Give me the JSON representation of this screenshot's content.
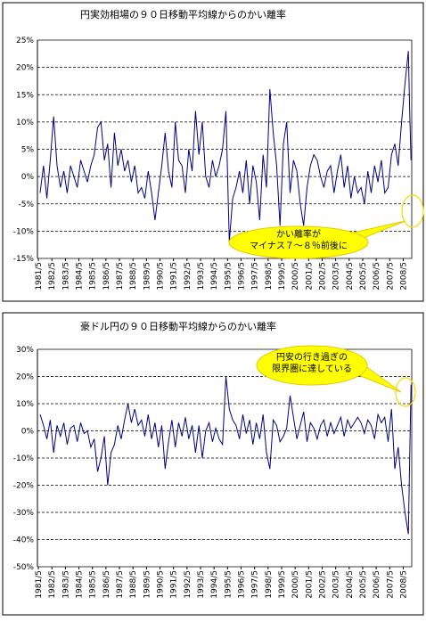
{
  "chart_data": [
    {
      "type": "line",
      "title": "円実効相場の９０日移動平均線からのかい離率",
      "color": "#000080",
      "grid": true,
      "annotation": [
        "かい離率が",
        "マイナス７～８％前後に"
      ],
      "ylim": [
        -15,
        25
      ],
      "yticks": [
        {
          "value": 25,
          "label": "25%"
        },
        {
          "value": 20,
          "label": "20%"
        },
        {
          "value": 15,
          "label": "15%"
        },
        {
          "value": 10,
          "label": "10%"
        },
        {
          "value": 5,
          "label": "5%"
        },
        {
          "value": 0,
          "label": "0%"
        },
        {
          "value": -5,
          "label": "-5%"
        },
        {
          "value": -10,
          "label": "-10%"
        },
        {
          "value": -15,
          "label": "-15%"
        }
      ],
      "xlim": [
        1981.3,
        2009.0
      ],
      "xticks": [
        {
          "value": 1981.37,
          "label": "1981/5"
        },
        {
          "value": 1982.37,
          "label": "1982/5"
        },
        {
          "value": 1983.37,
          "label": "1983/5"
        },
        {
          "value": 1984.37,
          "label": "1984/5"
        },
        {
          "value": 1985.37,
          "label": "1985/5"
        },
        {
          "value": 1986.37,
          "label": "1986/5"
        },
        {
          "value": 1987.37,
          "label": "1987/5"
        },
        {
          "value": 1988.37,
          "label": "1988/5"
        },
        {
          "value": 1989.37,
          "label": "1989/5"
        },
        {
          "value": 1990.37,
          "label": "1990/5"
        },
        {
          "value": 1991.37,
          "label": "1991/5"
        },
        {
          "value": 1992.37,
          "label": "1992/5"
        },
        {
          "value": 1993.37,
          "label": "1993/5"
        },
        {
          "value": 1994.37,
          "label": "1994/5"
        },
        {
          "value": 1995.37,
          "label": "1995/5"
        },
        {
          "value": 1996.37,
          "label": "1996/5"
        },
        {
          "value": 1997.37,
          "label": "1997/5"
        },
        {
          "value": 1998.37,
          "label": "1998/5"
        },
        {
          "value": 1999.37,
          "label": "1999/5"
        },
        {
          "value": 2000.37,
          "label": "2000/5"
        },
        {
          "value": 2001.37,
          "label": "2001/5"
        },
        {
          "value": 2002.37,
          "label": "2002/5"
        },
        {
          "value": 2003.37,
          "label": "2003/5"
        },
        {
          "value": 2004.37,
          "label": "2004/5"
        },
        {
          "value": 2005.37,
          "label": "2005/5"
        },
        {
          "value": 2006.37,
          "label": "2006/5"
        },
        {
          "value": 2007.37,
          "label": "2007/5"
        },
        {
          "value": 2008.37,
          "label": "2008/5"
        }
      ],
      "x": [
        1981.5,
        1981.75,
        1982.0,
        1982.25,
        1982.5,
        1982.75,
        1983.0,
        1983.25,
        1983.5,
        1983.75,
        1984.0,
        1984.25,
        1984.5,
        1984.75,
        1985.0,
        1985.25,
        1985.5,
        1985.75,
        1986.0,
        1986.25,
        1986.5,
        1986.75,
        1987.0,
        1987.25,
        1987.5,
        1987.75,
        1988.0,
        1988.25,
        1988.5,
        1988.75,
        1989.0,
        1989.25,
        1989.5,
        1989.75,
        1990.0,
        1990.25,
        1990.5,
        1990.75,
        1991.0,
        1991.25,
        1991.5,
        1991.75,
        1992.0,
        1992.25,
        1992.5,
        1992.75,
        1993.0,
        1993.25,
        1993.5,
        1993.75,
        1994.0,
        1994.25,
        1994.5,
        1994.75,
        1995.0,
        1995.25,
        1995.5,
        1995.75,
        1996.0,
        1996.25,
        1996.5,
        1996.75,
        1997.0,
        1997.25,
        1997.5,
        1997.75,
        1998.0,
        1998.25,
        1998.5,
        1998.75,
        1999.0,
        1999.25,
        1999.5,
        1999.75,
        2000.0,
        2000.25,
        2000.5,
        2000.75,
        2001.0,
        2001.25,
        2001.5,
        2001.75,
        2002.0,
        2002.25,
        2002.5,
        2002.75,
        2003.0,
        2003.25,
        2003.5,
        2003.75,
        2004.0,
        2004.25,
        2004.5,
        2004.75,
        2005.0,
        2005.25,
        2005.5,
        2005.75,
        2006.0,
        2006.25,
        2006.5,
        2006.75,
        2007.0,
        2007.25,
        2007.5,
        2007.75,
        2008.0,
        2008.25,
        2008.5,
        2008.75,
        2008.85,
        2008.95
      ],
      "values": [
        -3,
        2,
        -4,
        3,
        11,
        2,
        -2,
        1,
        -3,
        2,
        0,
        -2,
        3,
        1,
        -1,
        2,
        4,
        9,
        10,
        3,
        6,
        -2,
        8,
        2,
        5,
        1,
        3,
        -1,
        2,
        -3,
        -2,
        -4,
        1,
        -3,
        -8,
        -3,
        2,
        8,
        1,
        -2,
        10,
        3,
        2,
        -3,
        5,
        1,
        12,
        4,
        10,
        0,
        -2,
        3,
        0,
        2,
        5,
        12,
        -12,
        -4,
        -2,
        1,
        -3,
        3,
        -5,
        2,
        -1,
        -8,
        4,
        -2,
        16,
        8,
        2,
        -9,
        6,
        10,
        -3,
        3,
        1,
        -5,
        -9,
        -2,
        2,
        4,
        3,
        0,
        -2,
        1,
        2,
        -3,
        1,
        4,
        -2,
        2,
        -4,
        0,
        -3,
        -2,
        -5,
        1,
        -3,
        2,
        -1,
        3,
        -3,
        -2,
        4,
        6,
        2,
        10,
        17,
        23,
        12,
        3
      ]
    },
    {
      "type": "line",
      "title": "豪ドル円の９０日移動平均線からのかい離率",
      "color": "#000080",
      "grid": true,
      "annotation": [
        "円安の行き過ぎの",
        "限界圏に達している"
      ],
      "ylim": [
        -50,
        30
      ],
      "yticks": [
        {
          "value": 30,
          "label": "30%"
        },
        {
          "value": 20,
          "label": "20%"
        },
        {
          "value": 10,
          "label": "10%"
        },
        {
          "value": 0,
          "label": "0%"
        },
        {
          "value": -10,
          "label": "-10%"
        },
        {
          "value": -20,
          "label": "-20%"
        },
        {
          "value": -30,
          "label": "-30%"
        },
        {
          "value": -40,
          "label": "-40%"
        },
        {
          "value": -50,
          "label": "-50%"
        }
      ],
      "xlim": [
        1981.3,
        2009.0
      ],
      "xticks": [
        {
          "value": 1981.37,
          "label": "1981/5"
        },
        {
          "value": 1982.37,
          "label": "1982/5"
        },
        {
          "value": 1983.37,
          "label": "1983/5"
        },
        {
          "value": 1984.37,
          "label": "1984/5"
        },
        {
          "value": 1985.37,
          "label": "1985/5"
        },
        {
          "value": 1986.37,
          "label": "1986/5"
        },
        {
          "value": 1987.37,
          "label": "1987/5"
        },
        {
          "value": 1988.37,
          "label": "1988/5"
        },
        {
          "value": 1989.37,
          "label": "1989/5"
        },
        {
          "value": 1990.37,
          "label": "1990/5"
        },
        {
          "value": 1991.37,
          "label": "1991/5"
        },
        {
          "value": 1992.37,
          "label": "1992/5"
        },
        {
          "value": 1993.37,
          "label": "1993/5"
        },
        {
          "value": 1994.37,
          "label": "1994/5"
        },
        {
          "value": 1995.37,
          "label": "1995/5"
        },
        {
          "value": 1996.37,
          "label": "1996/5"
        },
        {
          "value": 1997.37,
          "label": "1997/5"
        },
        {
          "value": 1998.37,
          "label": "1998/5"
        },
        {
          "value": 1999.37,
          "label": "1999/5"
        },
        {
          "value": 2000.37,
          "label": "2000/5"
        },
        {
          "value": 2001.37,
          "label": "2001/5"
        },
        {
          "value": 2002.37,
          "label": "2002/5"
        },
        {
          "value": 2003.37,
          "label": "2003/5"
        },
        {
          "value": 2004.37,
          "label": "2004/5"
        },
        {
          "value": 2005.37,
          "label": "2005/5"
        },
        {
          "value": 2006.37,
          "label": "2006/5"
        },
        {
          "value": 2007.37,
          "label": "2007/5"
        },
        {
          "value": 2008.37,
          "label": "2008/5"
        }
      ],
      "x": [
        1981.5,
        1981.75,
        1982.0,
        1982.25,
        1982.5,
        1982.75,
        1983.0,
        1983.25,
        1983.5,
        1983.75,
        1984.0,
        1984.25,
        1984.5,
        1984.75,
        1985.0,
        1985.25,
        1985.5,
        1985.75,
        1986.0,
        1986.25,
        1986.5,
        1986.75,
        1987.0,
        1987.25,
        1987.5,
        1987.75,
        1988.0,
        1988.25,
        1988.5,
        1988.75,
        1989.0,
        1989.25,
        1989.5,
        1989.75,
        1990.0,
        1990.25,
        1990.5,
        1990.75,
        1991.0,
        1991.25,
        1991.5,
        1991.75,
        1992.0,
        1992.25,
        1992.5,
        1992.75,
        1993.0,
        1993.25,
        1993.5,
        1993.75,
        1994.0,
        1994.25,
        1994.5,
        1994.75,
        1995.0,
        1995.25,
        1995.5,
        1995.75,
        1996.0,
        1996.25,
        1996.5,
        1996.75,
        1997.0,
        1997.25,
        1997.5,
        1997.75,
        1998.0,
        1998.25,
        1998.5,
        1998.75,
        1999.0,
        1999.25,
        1999.5,
        1999.75,
        2000.0,
        2000.25,
        2000.5,
        2000.75,
        2001.0,
        2001.25,
        2001.5,
        2001.75,
        2002.0,
        2002.25,
        2002.5,
        2002.75,
        2003.0,
        2003.25,
        2003.5,
        2003.75,
        2004.0,
        2004.25,
        2004.5,
        2004.75,
        2005.0,
        2005.25,
        2005.5,
        2005.75,
        2006.0,
        2006.25,
        2006.5,
        2006.75,
        2007.0,
        2007.25,
        2007.5,
        2007.75,
        2008.0,
        2008.25,
        2008.5,
        2008.75,
        2008.85,
        2008.95
      ],
      "values": [
        6,
        2,
        -3,
        4,
        -8,
        2,
        -2,
        3,
        -5,
        1,
        2,
        -4,
        3,
        -1,
        0,
        -6,
        -3,
        -15,
        -10,
        -2,
        -20,
        -8,
        -5,
        2,
        -3,
        4,
        10,
        3,
        8,
        2,
        4,
        -2,
        6,
        -3,
        3,
        -6,
        2,
        -14,
        -4,
        4,
        -6,
        3,
        -2,
        5,
        -3,
        2,
        -8,
        2,
        -10,
        0,
        3,
        -4,
        1,
        -3,
        -5,
        20,
        8,
        4,
        2,
        -3,
        6,
        -1,
        4,
        -5,
        3,
        -3,
        6,
        -8,
        -14,
        4,
        2,
        -4,
        -2,
        1,
        13,
        5,
        -3,
        2,
        7,
        -4,
        3,
        1,
        -3,
        2,
        4,
        -2,
        3,
        -1,
        2,
        5,
        -2,
        4,
        1,
        3,
        5,
        3,
        -1,
        4,
        2,
        -3,
        6,
        3,
        5,
        -4,
        8,
        -14,
        -6,
        -20,
        -30,
        -38,
        -10,
        17
      ]
    }
  ]
}
